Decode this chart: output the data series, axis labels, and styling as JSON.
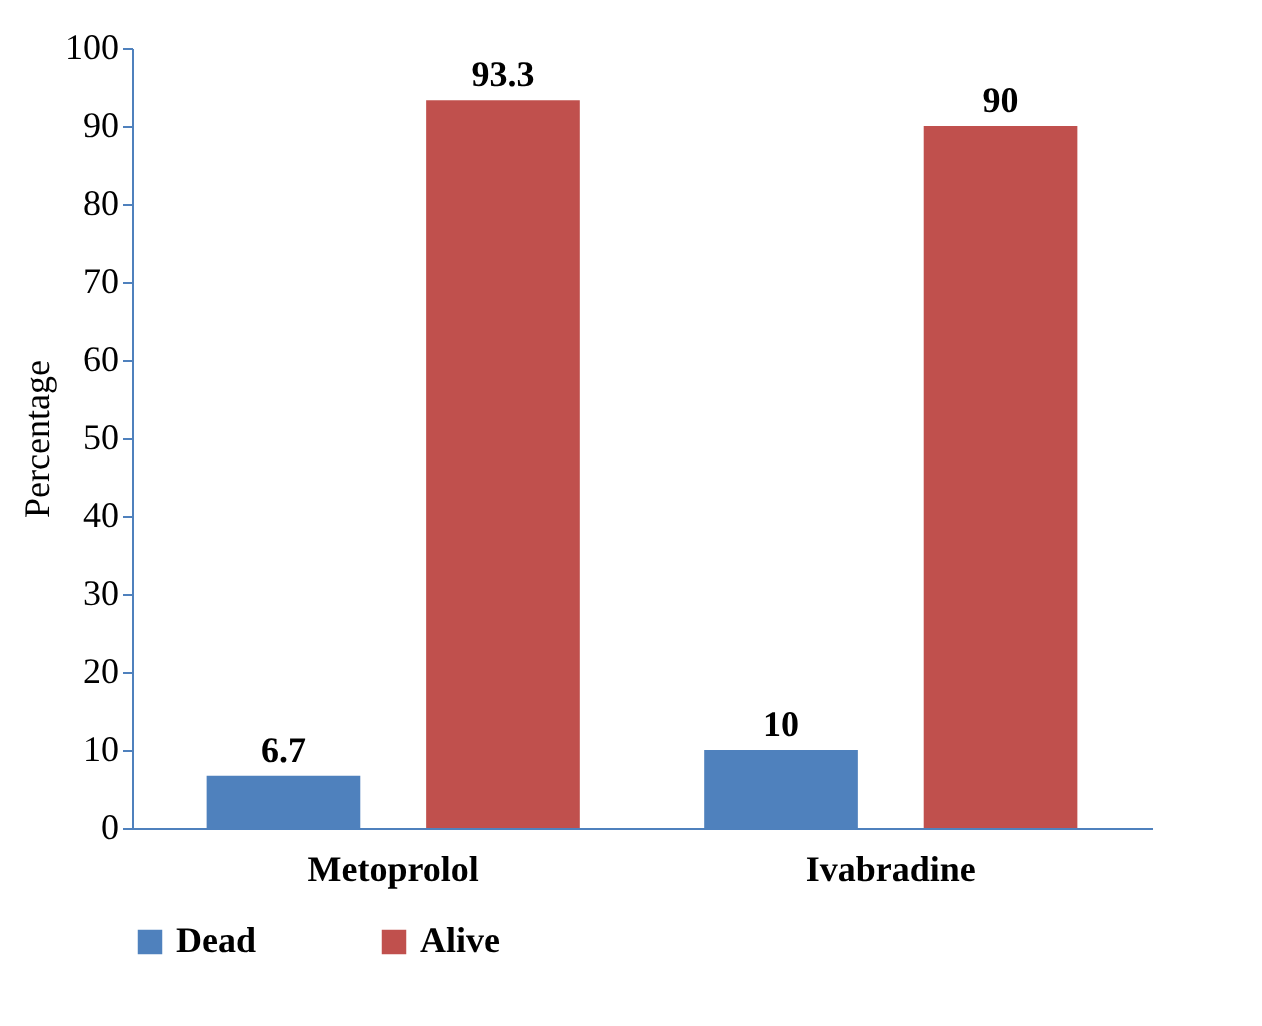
{
  "chart_data": {
    "type": "bar",
    "ylabel": "Percentage",
    "categories": [
      "Metoprolol",
      "Ivabradine"
    ],
    "series": [
      {
        "name": "Dead",
        "color": "#4f81bd",
        "values": [
          6.7,
          10
        ]
      },
      {
        "name": "Alive",
        "color": "#c0504d",
        "values": [
          93.3,
          90
        ]
      }
    ],
    "ylim": [
      0,
      100
    ],
    "yticks": [
      0,
      10,
      20,
      30,
      40,
      50,
      60,
      70,
      80,
      90,
      100
    ],
    "grid": false,
    "legend": "bottom",
    "data_labels": true
  }
}
